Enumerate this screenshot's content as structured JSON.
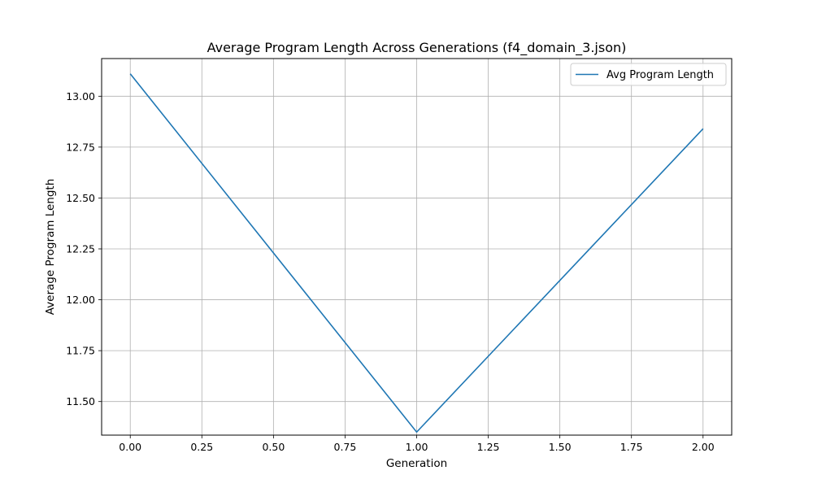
{
  "chart_data": {
    "type": "line",
    "title": "Average Program Length Across Generations (f4_domain_3.json)",
    "xlabel": "Generation",
    "ylabel": "Average Program Length",
    "xlim": [
      -0.1,
      2.1
    ],
    "ylim": [
      11.335,
      13.185
    ],
    "xticks": [
      0.0,
      0.25,
      0.5,
      0.75,
      1.0,
      1.25,
      1.5,
      1.75,
      2.0
    ],
    "xtick_labels": [
      "0.00",
      "0.25",
      "0.50",
      "0.75",
      "1.00",
      "1.25",
      "1.50",
      "1.75",
      "2.00"
    ],
    "yticks": [
      11.5,
      11.75,
      12.0,
      12.25,
      12.5,
      12.75,
      13.0
    ],
    "ytick_labels": [
      "11.50",
      "11.75",
      "12.00",
      "12.25",
      "12.50",
      "12.75",
      "13.00"
    ],
    "grid": true,
    "legend_position": "top-right",
    "series": [
      {
        "name": "Avg Program Length",
        "color": "#1f77b4",
        "x": [
          0,
          1,
          2
        ],
        "y": [
          13.11,
          11.35,
          12.84
        ]
      }
    ]
  }
}
